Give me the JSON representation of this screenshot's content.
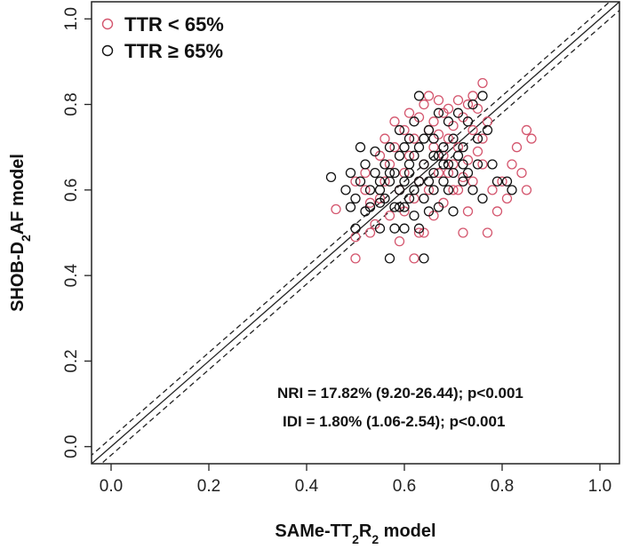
{
  "chart_data": {
    "type": "scatter",
    "title": "",
    "xlabel": {
      "text": "SAMe-TT",
      "sub1": "2",
      "mid": "R",
      "sub2": "2",
      "tail": " model"
    },
    "ylabel": {
      "text": "SHOB-D",
      "sub": "2",
      "tail": "AF model"
    },
    "xlim": [
      -0.04,
      1.04
    ],
    "ylim": [
      -0.04,
      1.04
    ],
    "x_ticks": [
      "0.0",
      "0.2",
      "0.4",
      "0.6",
      "0.8",
      "1.0"
    ],
    "y_ticks": [
      "0.0",
      "0.2",
      "0.4",
      "0.6",
      "0.8",
      "1.0"
    ],
    "x_tick_values": [
      0.0,
      0.2,
      0.4,
      0.6,
      0.8,
      1.0
    ],
    "y_tick_values": [
      0.0,
      0.2,
      0.4,
      0.6,
      0.8,
      1.0
    ],
    "reference_lines": [
      {
        "name": "identity",
        "style": "solid",
        "offset": 0.0
      },
      {
        "name": "upper-bound",
        "style": "dashed",
        "offset": 0.02
      },
      {
        "name": "lower-bound",
        "style": "dashed",
        "offset": -0.02
      }
    ],
    "legend": {
      "position": "top-left",
      "entries": [
        {
          "label": "TTR < 65%",
          "color": "#d4566e"
        },
        {
          "label": "TTR ≥ 65%",
          "color": "#111111"
        }
      ]
    },
    "annotations": [
      "NRI = 17.82% (9.20-26.44); p<0.001",
      "IDI = 1.80% (1.06-2.54); p<0.001"
    ],
    "series": [
      {
        "name": "TTR < 65%",
        "color": "#d4566e",
        "points": [
          [
            0.46,
            0.555
          ],
          [
            0.5,
            0.49
          ],
          [
            0.5,
            0.62
          ],
          [
            0.5,
            0.44
          ],
          [
            0.52,
            0.6
          ],
          [
            0.52,
            0.64
          ],
          [
            0.53,
            0.57
          ],
          [
            0.53,
            0.5
          ],
          [
            0.54,
            0.52
          ],
          [
            0.55,
            0.58
          ],
          [
            0.55,
            0.68
          ],
          [
            0.56,
            0.62
          ],
          [
            0.56,
            0.72
          ],
          [
            0.57,
            0.66
          ],
          [
            0.57,
            0.54
          ],
          [
            0.58,
            0.7
          ],
          [
            0.58,
            0.76
          ],
          [
            0.59,
            0.6
          ],
          [
            0.59,
            0.48
          ],
          [
            0.6,
            0.64
          ],
          [
            0.6,
            0.74
          ],
          [
            0.6,
            0.55
          ],
          [
            0.61,
            0.78
          ],
          [
            0.61,
            0.68
          ],
          [
            0.62,
            0.58
          ],
          [
            0.62,
            0.72
          ],
          [
            0.62,
            0.44
          ],
          [
            0.63,
            0.77
          ],
          [
            0.63,
            0.62
          ],
          [
            0.64,
            0.66
          ],
          [
            0.64,
            0.8
          ],
          [
            0.64,
            0.5
          ],
          [
            0.65,
            0.74
          ],
          [
            0.65,
            0.6
          ],
          [
            0.66,
            0.7
          ],
          [
            0.66,
            0.76
          ],
          [
            0.67,
            0.64
          ],
          [
            0.67,
            0.81
          ],
          [
            0.68,
            0.68
          ],
          [
            0.68,
            0.57
          ],
          [
            0.69,
            0.72
          ],
          [
            0.69,
            0.79
          ],
          [
            0.7,
            0.66
          ],
          [
            0.7,
            0.6
          ],
          [
            0.7,
            0.75
          ],
          [
            0.71,
            0.81
          ],
          [
            0.71,
            0.7
          ],
          [
            0.72,
            0.63
          ],
          [
            0.72,
            0.5
          ],
          [
            0.73,
            0.8
          ],
          [
            0.73,
            0.55
          ],
          [
            0.74,
            0.74
          ],
          [
            0.74,
            0.62
          ],
          [
            0.75,
            0.79
          ],
          [
            0.75,
            0.69
          ],
          [
            0.76,
            0.85
          ],
          [
            0.76,
            0.66
          ],
          [
            0.77,
            0.5
          ],
          [
            0.77,
            0.76
          ],
          [
            0.78,
            0.6
          ],
          [
            0.79,
            0.55
          ],
          [
            0.8,
            0.62
          ],
          [
            0.81,
            0.58
          ],
          [
            0.82,
            0.66
          ],
          [
            0.83,
            0.7
          ],
          [
            0.84,
            0.64
          ],
          [
            0.85,
            0.6
          ],
          [
            0.85,
            0.74
          ],
          [
            0.86,
            0.72
          ],
          [
            0.63,
            0.5
          ],
          [
            0.66,
            0.54
          ],
          [
            0.68,
            0.78
          ],
          [
            0.71,
            0.6
          ],
          [
            0.74,
            0.82
          ],
          [
            0.69,
            0.64
          ],
          [
            0.72,
            0.77
          ],
          [
            0.65,
            0.82
          ],
          [
            0.67,
            0.73
          ],
          [
            0.73,
            0.67
          ],
          [
            0.76,
            0.72
          ]
        ]
      },
      {
        "name": "TTR ≥ 65%",
        "color": "#111111",
        "points": [
          [
            0.45,
            0.63
          ],
          [
            0.48,
            0.6
          ],
          [
            0.49,
            0.64
          ],
          [
            0.49,
            0.56
          ],
          [
            0.5,
            0.58
          ],
          [
            0.5,
            0.51
          ],
          [
            0.51,
            0.62
          ],
          [
            0.51,
            0.7
          ],
          [
            0.52,
            0.55
          ],
          [
            0.52,
            0.66
          ],
          [
            0.53,
            0.6
          ],
          [
            0.53,
            0.56
          ],
          [
            0.54,
            0.64
          ],
          [
            0.54,
            0.69
          ],
          [
            0.55,
            0.57
          ],
          [
            0.55,
            0.51
          ],
          [
            0.55,
            0.62
          ],
          [
            0.56,
            0.66
          ],
          [
            0.56,
            0.58
          ],
          [
            0.57,
            0.7
          ],
          [
            0.57,
            0.62
          ],
          [
            0.57,
            0.44
          ],
          [
            0.58,
            0.56
          ],
          [
            0.58,
            0.64
          ],
          [
            0.58,
            0.51
          ],
          [
            0.59,
            0.68
          ],
          [
            0.59,
            0.6
          ],
          [
            0.59,
            0.74
          ],
          [
            0.6,
            0.56
          ],
          [
            0.6,
            0.62
          ],
          [
            0.6,
            0.7
          ],
          [
            0.6,
            0.51
          ],
          [
            0.61,
            0.58
          ],
          [
            0.61,
            0.66
          ],
          [
            0.61,
            0.72
          ],
          [
            0.62,
            0.6
          ],
          [
            0.62,
            0.54
          ],
          [
            0.62,
            0.68
          ],
          [
            0.62,
            0.76
          ],
          [
            0.63,
            0.62
          ],
          [
            0.63,
            0.51
          ],
          [
            0.63,
            0.7
          ],
          [
            0.63,
            0.82
          ],
          [
            0.64,
            0.58
          ],
          [
            0.64,
            0.66
          ],
          [
            0.64,
            0.44
          ],
          [
            0.65,
            0.62
          ],
          [
            0.65,
            0.74
          ],
          [
            0.65,
            0.55
          ],
          [
            0.66,
            0.64
          ],
          [
            0.66,
            0.72
          ],
          [
            0.66,
            0.6
          ],
          [
            0.67,
            0.68
          ],
          [
            0.67,
            0.78
          ],
          [
            0.67,
            0.56
          ],
          [
            0.68,
            0.62
          ],
          [
            0.68,
            0.7
          ],
          [
            0.69,
            0.66
          ],
          [
            0.69,
            0.6
          ],
          [
            0.69,
            0.76
          ],
          [
            0.7,
            0.64
          ],
          [
            0.7,
            0.72
          ],
          [
            0.7,
            0.55
          ],
          [
            0.71,
            0.68
          ],
          [
            0.71,
            0.78
          ],
          [
            0.72,
            0.62
          ],
          [
            0.72,
            0.7
          ],
          [
            0.73,
            0.76
          ],
          [
            0.73,
            0.64
          ],
          [
            0.74,
            0.6
          ],
          [
            0.74,
            0.8
          ],
          [
            0.75,
            0.72
          ],
          [
            0.75,
            0.66
          ],
          [
            0.76,
            0.82
          ],
          [
            0.76,
            0.58
          ],
          [
            0.77,
            0.74
          ],
          [
            0.78,
            0.66
          ],
          [
            0.79,
            0.62
          ],
          [
            0.81,
            0.62
          ],
          [
            0.82,
            0.6
          ],
          [
            0.55,
            0.6
          ],
          [
            0.57,
            0.64
          ],
          [
            0.59,
            0.56
          ],
          [
            0.61,
            0.64
          ],
          [
            0.64,
            0.72
          ],
          [
            0.66,
            0.68
          ],
          [
            0.68,
            0.66
          ],
          [
            0.72,
            0.66
          ]
        ]
      }
    ]
  }
}
